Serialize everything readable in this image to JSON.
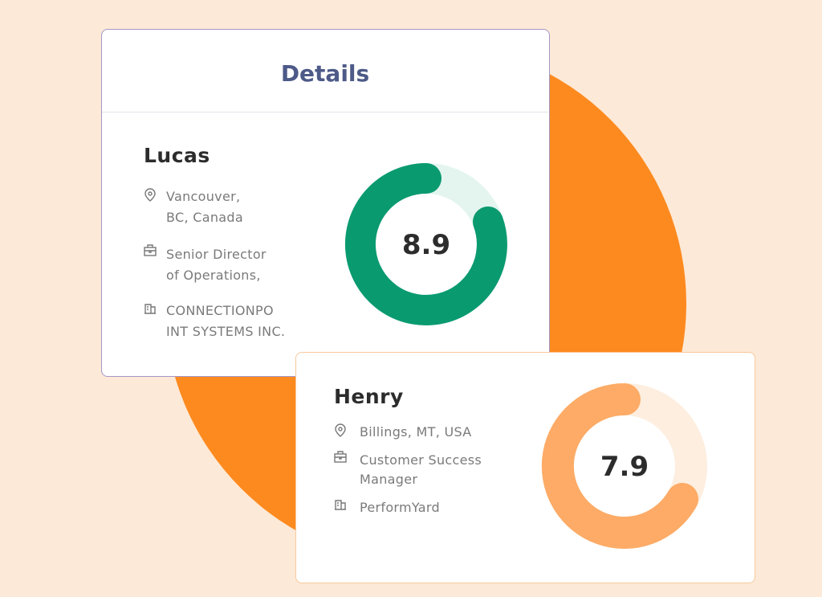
{
  "header": {
    "title": "Details"
  },
  "profiles": [
    {
      "name": "Lucas",
      "location": [
        "Vancouver,",
        "BC, Canada"
      ],
      "role": [
        "Senior Director",
        "of Operations,"
      ],
      "company": [
        "CONNECTIONPO",
        "INT SYSTEMS INC."
      ],
      "score": 8.9
    },
    {
      "name": "Henry",
      "location": [
        "Billings, MT, USA"
      ],
      "role": [
        "Customer Success",
        "Manager"
      ],
      "company": [
        "PerformYard"
      ],
      "score": 7.9
    }
  ]
}
